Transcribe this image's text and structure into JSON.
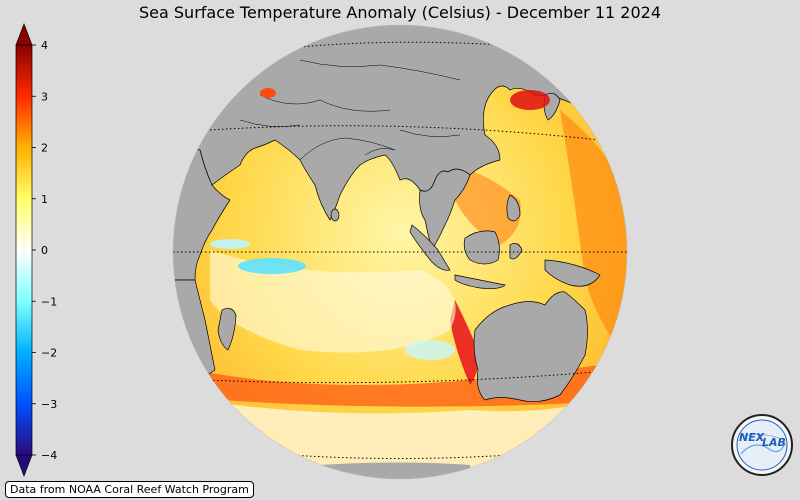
{
  "title": "Sea Surface Temperature Anomaly (Celsius) - December 11 2024",
  "credit": "Data from NOAA Coral Reef Watch Program",
  "logo": {
    "text_left": "NEX",
    "text_right": "LAB"
  },
  "colorbar": {
    "min": -4,
    "max": 4,
    "ticks": [
      "4",
      "3",
      "2",
      "1",
      "0",
      "−1",
      "−2",
      "−3",
      "−4"
    ],
    "extend": "both",
    "colors": [
      "#2a0a7a",
      "#0050ff",
      "#00b0ff",
      "#7fffff",
      "#ffffff",
      "#ffff66",
      "#ffb000",
      "#ff2a00",
      "#8b0000"
    ]
  },
  "map": {
    "projection": "orthographic",
    "center": "Indian Ocean / Equator",
    "land_color": "#a9a9a9",
    "coastline_color": "#000000",
    "graticule": "dotted"
  }
}
